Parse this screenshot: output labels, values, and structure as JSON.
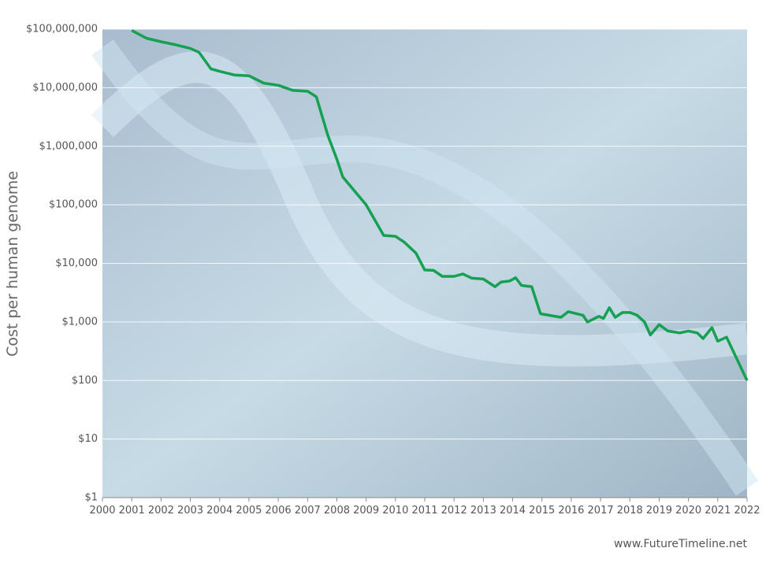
{
  "chart_data": {
    "type": "line",
    "y_label": "Cost per human genome",
    "source": "www.FutureTimeline.net",
    "xlim": [
      2000,
      2022
    ],
    "xticks": [
      2000,
      2001,
      2002,
      2003,
      2004,
      2005,
      2006,
      2007,
      2008,
      2009,
      2010,
      2011,
      2012,
      2013,
      2014,
      2015,
      2016,
      2017,
      2018,
      2019,
      2020,
      2021,
      2022
    ],
    "ylim": [
      1,
      100000000
    ],
    "log_scale": true,
    "grid": true,
    "yticks": [
      {
        "value": 1,
        "label": "$1"
      },
      {
        "value": 10,
        "label": "$10"
      },
      {
        "value": 100,
        "label": "$100"
      },
      {
        "value": 1000,
        "label": "$1,000"
      },
      {
        "value": 10000,
        "label": "$10,000"
      },
      {
        "value": 100000,
        "label": "$100,000"
      },
      {
        "value": 1000000,
        "label": "$1,000,000"
      },
      {
        "value": 10000000,
        "label": "$10,000,000"
      },
      {
        "value": 100000000,
        "label": "$100,000,000"
      }
    ],
    "series": [
      {
        "color": "#16a052",
        "x": [
          2001.0,
          2001.5,
          2002.0,
          2002.5,
          2003.0,
          2003.3,
          2003.7,
          2004.0,
          2004.5,
          2005.0,
          2005.5,
          2006.0,
          2006.5,
          2007.0,
          2007.3,
          2007.7,
          2008.0,
          2008.2,
          2009.0,
          2009.6,
          2010.0,
          2010.3,
          2010.7,
          2011.0,
          2011.3,
          2011.6,
          2012.0,
          2012.3,
          2012.6,
          2013.0,
          2013.4,
          2013.6,
          2013.9,
          2014.1,
          2014.3,
          2014.65,
          2014.95,
          2015.65,
          2015.9,
          2016.4,
          2016.55,
          2016.95,
          2017.1,
          2017.3,
          2017.5,
          2017.75,
          2018.0,
          2018.25,
          2018.5,
          2018.7,
          2019.0,
          2019.3,
          2019.7,
          2020.0,
          2020.3,
          2020.5,
          2020.8,
          2021.0,
          2021.3,
          2022.0
        ],
        "values": [
          95000000,
          70000000,
          61000000,
          54000000,
          47000000,
          40000000,
          21000000,
          19000000,
          16500000,
          16000000,
          12000000,
          11000000,
          9000000,
          8700000,
          7000000,
          1500000,
          600000,
          300000,
          100000,
          30000,
          29000,
          23000,
          15000,
          7700,
          7600,
          6000,
          6000,
          6600,
          5600,
          5400,
          4000,
          4800,
          5000,
          5700,
          4200,
          4000,
          1380,
          1200,
          1500,
          1300,
          1000,
          1250,
          1150,
          1750,
          1200,
          1450,
          1450,
          1300,
          1000,
          600,
          900,
          700,
          650,
          700,
          650,
          520,
          800,
          470,
          550,
          100
        ]
      }
    ]
  }
}
